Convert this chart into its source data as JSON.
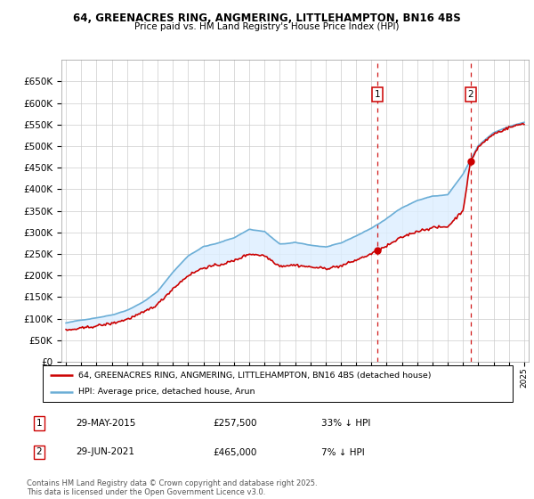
{
  "title1": "64, GREENACRES RING, ANGMERING, LITTLEHAMPTON, BN16 4BS",
  "title2": "Price paid vs. HM Land Registry's House Price Index (HPI)",
  "legend_line1": "64, GREENACRES RING, ANGMERING, LITTLEHAMPTON, BN16 4BS (detached house)",
  "legend_line2": "HPI: Average price, detached house, Arun",
  "footer": "Contains HM Land Registry data © Crown copyright and database right 2025.\nThis data is licensed under the Open Government Licence v3.0.",
  "sale1_date": "29-MAY-2015",
  "sale1_price": "£257,500",
  "sale1_hpi": "33% ↓ HPI",
  "sale1_year": 2015.41,
  "sale1_value": 257500,
  "sale2_date": "29-JUN-2021",
  "sale2_price": "£465,000",
  "sale2_hpi": "7% ↓ HPI",
  "sale2_year": 2021.49,
  "sale2_value": 465000,
  "hpi_color": "#6baed6",
  "fill_color": "#ddeeff",
  "sale_color": "#cc0000",
  "dashed_color": "#cc0000",
  "ylim": [
    0,
    700000
  ],
  "yticks": [
    0,
    50000,
    100000,
    150000,
    200000,
    250000,
    300000,
    350000,
    400000,
    450000,
    500000,
    550000,
    600000,
    650000
  ],
  "xlim_start": 1994.7,
  "xlim_end": 2025.3
}
